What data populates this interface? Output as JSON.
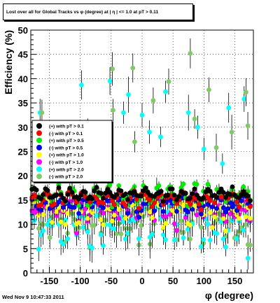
{
  "chart_data": {
    "type": "scatter",
    "title": "Lost over all for Global Tracks vs φ (degree) at | η | <= 1.0 at pT > 0.11",
    "xlabel": "φ (degree)",
    "ylabel": "Efficiency (%)",
    "xlim": [
      -180,
      180
    ],
    "ylim": [
      0,
      50
    ],
    "x_ticks": [
      -150,
      -100,
      -50,
      0,
      50,
      100,
      150
    ],
    "y_ticks": [
      0,
      5,
      10,
      15,
      20,
      25,
      30,
      35,
      40,
      45,
      50
    ],
    "grid": "dotted",
    "legend_placement": "left-middle",
    "series": [
      {
        "name": "(+) with pT > 0.1",
        "color": "#000000",
        "level": 16.2,
        "amp": 0.8,
        "noise": 0.6,
        "err": 0.6
      },
      {
        "name": "(-) with pT > 0.1",
        "color": "#ff0000",
        "level": 15.2,
        "amp": 1.0,
        "noise": 0.9,
        "err": 0.8
      },
      {
        "name": "(+) with pT > 0.5",
        "color": "#00ee00",
        "level": 16.0,
        "amp": 1.2,
        "noise": 1.1,
        "err": 0.9
      },
      {
        "name": "(-) with pT > 0.5",
        "color": "#0000ff",
        "level": 14.2,
        "amp": 1.2,
        "noise": 1.2,
        "err": 1.0
      },
      {
        "name": "(+) with pT > 1.0",
        "color": "#ffff00",
        "level": 13.0,
        "amp": 1.8,
        "noise": 1.8,
        "err": 1.4
      },
      {
        "name": "(-) with pT > 1.0",
        "color": "#ff00ff",
        "level": 13.2,
        "amp": 1.8,
        "noise": 2.0,
        "err": 1.5
      },
      {
        "name": "(+) with pT > 2.0",
        "color": "#00ffff",
        "level": 10.5,
        "amp": 2.5,
        "noise": 3.5,
        "err": 2.2
      },
      {
        "name": "(-) with pT > 2.0",
        "color": "#7fcc66",
        "level": 10.8,
        "amp": 2.5,
        "noise": 3.2,
        "err": 2.2
      }
    ],
    "outliers": [
      {
        "series": 6,
        "x": -165,
        "y": 33
      },
      {
        "series": 7,
        "x": -162,
        "y": 33
      },
      {
        "series": 6,
        "x": -98,
        "y": 38.7
      },
      {
        "series": 7,
        "x": -88,
        "y": 29.5
      },
      {
        "series": 6,
        "x": -52,
        "y": 39.5
      },
      {
        "series": 7,
        "x": -48,
        "y": 42
      },
      {
        "series": 7,
        "x": -47,
        "y": 33.5
      },
      {
        "series": 6,
        "x": -30,
        "y": 33
      },
      {
        "series": 6,
        "x": -22,
        "y": 36.7
      },
      {
        "series": 7,
        "x": -15,
        "y": 42.2
      },
      {
        "series": 7,
        "x": -12,
        "y": 27
      },
      {
        "series": 6,
        "x": 0,
        "y": 32.5
      },
      {
        "series": 6,
        "x": 12,
        "y": 29
      },
      {
        "series": 7,
        "x": 18,
        "y": 35.5
      },
      {
        "series": 6,
        "x": 38,
        "y": 37.3
      },
      {
        "series": 7,
        "x": 43,
        "y": 39.4
      },
      {
        "series": 6,
        "x": 30,
        "y": 28
      },
      {
        "series": 6,
        "x": 75,
        "y": 33
      },
      {
        "series": 7,
        "x": 78,
        "y": 45.2
      },
      {
        "series": 7,
        "x": 85,
        "y": 31.7
      },
      {
        "series": 6,
        "x": 90,
        "y": 30
      },
      {
        "series": 6,
        "x": 100,
        "y": 25.5
      },
      {
        "series": 7,
        "x": 108,
        "y": 37.7
      },
      {
        "series": 7,
        "x": 120,
        "y": 25.8
      },
      {
        "series": 6,
        "x": 140,
        "y": 34
      },
      {
        "series": 7,
        "x": 145,
        "y": 29
      },
      {
        "series": 6,
        "x": 165,
        "y": 35.8
      },
      {
        "series": 7,
        "x": 168,
        "y": 37.2
      },
      {
        "series": 7,
        "x": 171,
        "y": 30.3
      },
      {
        "series": 6,
        "x": 130,
        "y": 22.5
      },
      {
        "series": 6,
        "x": -140,
        "y": 24.5
      },
      {
        "series": 7,
        "x": -120,
        "y": 22
      }
    ]
  },
  "footer": {
    "timestamp": "Wed Nov  9 10:47:33 2011"
  }
}
